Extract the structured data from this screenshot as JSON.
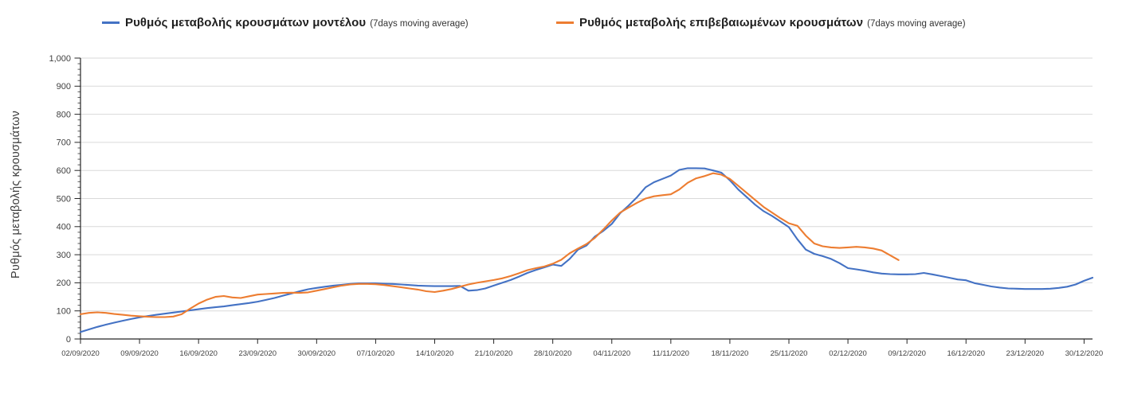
{
  "page": {
    "background": "#ffffff"
  },
  "colors": {
    "model_line": "#4472c4",
    "confirmed_line": "#ed7d31",
    "gridline": "#d9d9d9",
    "axis": "#262626",
    "minor_tick": "#595959",
    "tick_label": "#404040",
    "legend_text": "#1f1f1f"
  },
  "chart_data": {
    "type": "line",
    "title": "",
    "ylabel": "Ρυθμός μεταβολής κρουσμάτων",
    "xlabel": "",
    "grid": "horizontal",
    "legend_position": "top",
    "ylim": [
      0,
      1000
    ],
    "y_major_step": 100,
    "y_minor_step": 20,
    "y_tick_labels": [
      "0",
      "100",
      "200",
      "300",
      "400",
      "500",
      "600",
      "700",
      "800",
      "900",
      "1,000"
    ],
    "x_start_date": "02/09/2020",
    "point_interval_days": 1,
    "x_tick_every_days": 7,
    "x_tick_labels": [
      "02/09/2020",
      "09/09/2020",
      "16/09/2020",
      "23/09/2020",
      "30/09/2020",
      "07/10/2020",
      "14/10/2020",
      "21/10/2020",
      "28/10/2020",
      "04/11/2020",
      "11/11/2020",
      "18/11/2020",
      "25/11/2020",
      "02/12/2020",
      "09/12/2020",
      "16/12/2020",
      "23/12/2020",
      "30/12/2020"
    ],
    "series": [
      {
        "name": "Ρυθμός μεταβολής κρουσμάτων μοντέλου",
        "name_suffix": "(7days moving average)",
        "color": "#4472c4",
        "values": [
          25,
          34,
          43,
          51,
          58,
          65,
          71,
          77,
          82,
          86,
          90,
          94,
          98,
          102,
          106,
          110,
          113,
          116,
          120,
          124,
          128,
          133,
          139,
          146,
          154,
          162,
          170,
          177,
          182,
          186,
          190,
          193,
          196,
          198,
          198,
          198,
          197,
          196,
          194,
          192,
          190,
          189,
          188,
          188,
          188,
          189,
          172,
          174,
          180,
          190,
          200,
          210,
          222,
          235,
          246,
          255,
          265,
          260,
          285,
          318,
          333,
          365,
          385,
          410,
          448,
          475,
          505,
          540,
          558,
          570,
          582,
          602,
          608,
          608,
          607,
          600,
          592,
          565,
          532,
          505,
          478,
          455,
          438,
          418,
          398,
          355,
          318,
          303,
          295,
          285,
          270,
          252,
          248,
          243,
          237,
          233,
          231,
          230,
          230,
          231,
          235,
          230,
          224,
          218,
          212,
          209,
          199,
          193,
          187,
          183,
          180,
          179,
          178,
          178,
          178,
          179,
          182,
          186,
          194,
          207,
          218
        ]
      },
      {
        "name": "Ρυθμός μεταβολής επιβεβαιωμένων κρουσμάτων",
        "name_suffix": "(7days moving average)",
        "color": "#ed7d31",
        "values": [
          88,
          93,
          95,
          93,
          89,
          86,
          83,
          81,
          79,
          78,
          78,
          80,
          88,
          108,
          126,
          140,
          150,
          153,
          148,
          146,
          152,
          158,
          160,
          162,
          164,
          165,
          164,
          166,
          172,
          178,
          184,
          190,
          194,
          196,
          196,
          195,
          192,
          188,
          184,
          180,
          176,
          170,
          167,
          172,
          178,
          186,
          194,
          200,
          205,
          210,
          216,
          224,
          234,
          245,
          252,
          258,
          268,
          282,
          305,
          322,
          338,
          360,
          390,
          422,
          450,
          468,
          485,
          500,
          508,
          512,
          515,
          532,
          556,
          572,
          580,
          590,
          585,
          570,
          545,
          520,
          495,
          470,
          450,
          430,
          412,
          403,
          368,
          340,
          330,
          326,
          324,
          326,
          328,
          326,
          322,
          315,
          298,
          281
        ]
      }
    ]
  }
}
